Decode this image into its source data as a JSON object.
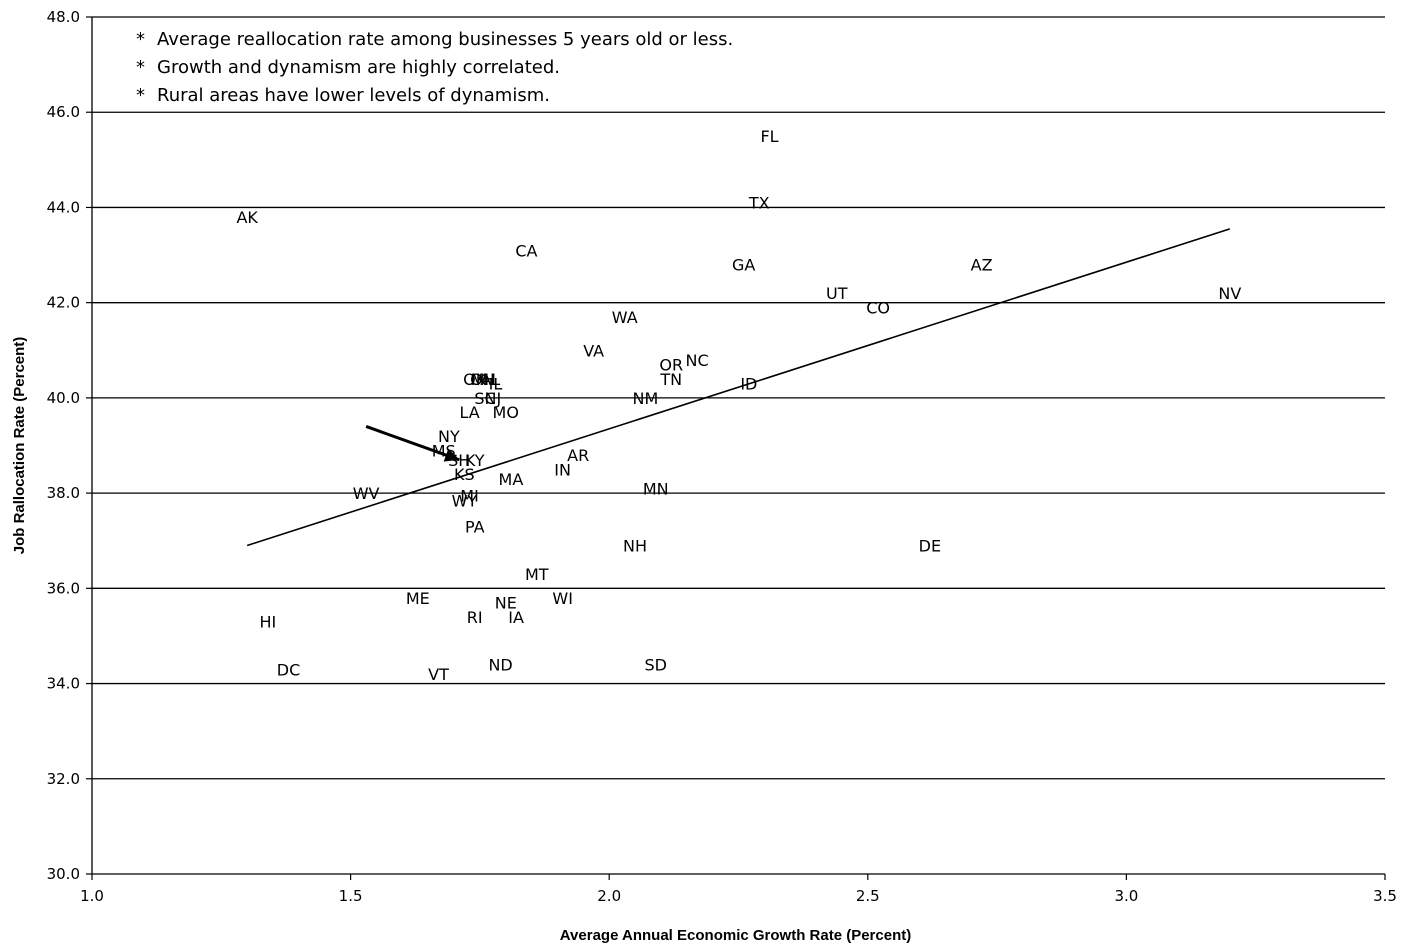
{
  "chart_data": {
    "type": "scatter",
    "title": "",
    "xlabel": "Average Annual Economic Growth Rate (Percent)",
    "ylabel": "Job Rallocation Rate (Percent)",
    "xlim": [
      1.0,
      3.5
    ],
    "ylim": [
      30.0,
      48.0
    ],
    "x_ticks": [
      "1.0",
      "1.5",
      "2.0",
      "2.5",
      "3.0",
      "3.5"
    ],
    "y_ticks": [
      "30.0",
      "32.0",
      "34.0",
      "36.0",
      "38.0",
      "40.0",
      "42.0",
      "44.0",
      "46.0",
      "48.0"
    ],
    "grid": "horizontal",
    "notes": [
      "Average reallocation rate among businesses 5 years old or less.",
      "Growth and dynamism are highly correlated.",
      "Rural areas have lower levels of dynamism."
    ],
    "note_bullet": "*",
    "trendline": {
      "x": [
        1.3,
        3.2
      ],
      "y": [
        36.9,
        43.55
      ]
    },
    "arrow": {
      "from": [
        1.53,
        39.4
      ],
      "to": [
        1.71,
        38.7
      ]
    },
    "points": [
      {
        "label": "FL",
        "x": 2.31,
        "y": 45.5
      },
      {
        "label": "TX",
        "x": 2.29,
        "y": 44.1
      },
      {
        "label": "AK",
        "x": 1.3,
        "y": 43.8
      },
      {
        "label": "CA",
        "x": 1.84,
        "y": 43.1
      },
      {
        "label": "GA",
        "x": 2.26,
        "y": 42.8
      },
      {
        "label": "AZ",
        "x": 2.72,
        "y": 42.8
      },
      {
        "label": "UT",
        "x": 2.44,
        "y": 42.2
      },
      {
        "label": "NV",
        "x": 3.2,
        "y": 42.2
      },
      {
        "label": "CO",
        "x": 2.52,
        "y": 41.9
      },
      {
        "label": "WA",
        "x": 2.03,
        "y": 41.7
      },
      {
        "label": "VA",
        "x": 1.97,
        "y": 41.0
      },
      {
        "label": "OR",
        "x": 2.12,
        "y": 40.7
      },
      {
        "label": "NC",
        "x": 2.17,
        "y": 40.8
      },
      {
        "label": "TN",
        "x": 2.12,
        "y": 40.4
      },
      {
        "label": "ID",
        "x": 2.27,
        "y": 40.3
      },
      {
        "label": "OK",
        "x": 1.74,
        "y": 40.4
      },
      {
        "label": "MI",
        "x": 1.75,
        "y": 40.4
      },
      {
        "label": "AL",
        "x": 1.77,
        "y": 40.4
      },
      {
        "label": "OH",
        "x": 1.755,
        "y": 40.4
      },
      {
        "label": "IL",
        "x": 1.78,
        "y": 40.3
      },
      {
        "label": "NM",
        "x": 2.07,
        "y": 40.0
      },
      {
        "label": "SC",
        "x": 1.76,
        "y": 40.0
      },
      {
        "label": "NJ",
        "x": 1.775,
        "y": 40.0
      },
      {
        "label": "LA",
        "x": 1.73,
        "y": 39.7
      },
      {
        "label": "MO",
        "x": 1.8,
        "y": 39.7
      },
      {
        "label": "NY",
        "x": 1.69,
        "y": 39.2
      },
      {
        "label": "MS",
        "x": 1.68,
        "y": 38.9
      },
      {
        "label": "SH",
        "x": 1.71,
        "y": 38.7
      },
      {
        "label": "KY",
        "x": 1.74,
        "y": 38.7
      },
      {
        "label": "AR",
        "x": 1.94,
        "y": 38.8
      },
      {
        "label": "IN",
        "x": 1.91,
        "y": 38.5
      },
      {
        "label": "KS",
        "x": 1.72,
        "y": 38.4
      },
      {
        "label": "MA",
        "x": 1.81,
        "y": 38.3
      },
      {
        "label": "WV",
        "x": 1.53,
        "y": 38.0
      },
      {
        "label": "MN",
        "x": 2.09,
        "y": 38.1
      },
      {
        "label": "MI",
        "x": 1.73,
        "y": 37.95
      },
      {
        "label": "WY",
        "x": 1.72,
        "y": 37.85
      },
      {
        "label": "PA",
        "x": 1.74,
        "y": 37.3
      },
      {
        "label": "NH",
        "x": 2.05,
        "y": 36.9
      },
      {
        "label": "DE",
        "x": 2.62,
        "y": 36.9
      },
      {
        "label": "MT",
        "x": 1.86,
        "y": 36.3
      },
      {
        "label": "ME",
        "x": 1.63,
        "y": 35.8
      },
      {
        "label": "NE",
        "x": 1.8,
        "y": 35.7
      },
      {
        "label": "WI",
        "x": 1.91,
        "y": 35.8
      },
      {
        "label": "RI",
        "x": 1.74,
        "y": 35.4
      },
      {
        "label": "IA",
        "x": 1.82,
        "y": 35.4
      },
      {
        "label": "HI",
        "x": 1.34,
        "y": 35.3
      },
      {
        "label": "DC",
        "x": 1.38,
        "y": 34.3
      },
      {
        "label": "VT",
        "x": 1.67,
        "y": 34.2
      },
      {
        "label": "ND",
        "x": 1.79,
        "y": 34.4
      },
      {
        "label": "SD",
        "x": 2.09,
        "y": 34.4
      }
    ]
  }
}
